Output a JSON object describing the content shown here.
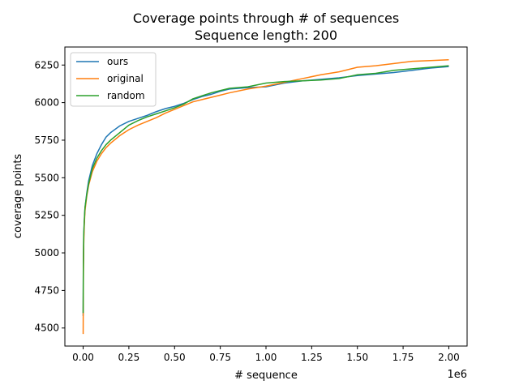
{
  "chart_data": {
    "type": "line",
    "title": "Coverage points through # of sequences",
    "subtitle": "Sequence length: 200",
    "xlabel": "# sequence",
    "ylabel": "coverage points",
    "x_offset_label": "1e6",
    "xlim": [
      -0.1,
      2.1
    ],
    "ylim": [
      4380,
      6370
    ],
    "x_ticks": [
      0.0,
      0.25,
      0.5,
      0.75,
      1.0,
      1.25,
      1.5,
      1.75,
      2.0
    ],
    "x_tick_labels": [
      "0.00",
      "0.25",
      "0.50",
      "0.75",
      "1.00",
      "1.25",
      "1.50",
      "1.75",
      "2.00"
    ],
    "y_ticks": [
      4500,
      4750,
      5000,
      5250,
      5500,
      5750,
      6000,
      6250
    ],
    "y_tick_labels": [
      "4500",
      "4750",
      "5000",
      "5250",
      "5500",
      "5750",
      "6000",
      "6250"
    ],
    "grid": false,
    "legend_position": "top-left",
    "series": [
      {
        "name": "ours",
        "color": "#1f77b4",
        "x": [
          0,
          0.001,
          0.003,
          0.006,
          0.01,
          0.02,
          0.03,
          0.05,
          0.075,
          0.1,
          0.125,
          0.15,
          0.2,
          0.25,
          0.3,
          0.35,
          0.4,
          0.45,
          0.5,
          0.55,
          0.6,
          0.65,
          0.7,
          0.75,
          0.8,
          0.9,
          1.0,
          1.1,
          1.2,
          1.3,
          1.4,
          1.5,
          1.6,
          1.7,
          1.8,
          1.9,
          2.0
        ],
        "values": [
          4580,
          4900,
          5100,
          5200,
          5300,
          5400,
          5480,
          5580,
          5660,
          5720,
          5770,
          5800,
          5845,
          5875,
          5895,
          5915,
          5940,
          5960,
          5975,
          5995,
          6020,
          6040,
          6055,
          6075,
          6090,
          6100,
          6105,
          6130,
          6145,
          6155,
          6165,
          6180,
          6190,
          6200,
          6215,
          6230,
          6240
        ]
      },
      {
        "name": "original",
        "color": "#ff7f0e",
        "x": [
          0,
          0.001,
          0.003,
          0.006,
          0.01,
          0.02,
          0.03,
          0.05,
          0.075,
          0.1,
          0.125,
          0.15,
          0.2,
          0.25,
          0.3,
          0.35,
          0.4,
          0.45,
          0.5,
          0.55,
          0.6,
          0.65,
          0.7,
          0.75,
          0.8,
          0.9,
          1.0,
          1.1,
          1.2,
          1.3,
          1.4,
          1.5,
          1.6,
          1.7,
          1.8,
          1.9,
          2.0
        ],
        "values": [
          4460,
          4800,
          5050,
          5180,
          5280,
          5380,
          5450,
          5540,
          5610,
          5660,
          5700,
          5730,
          5780,
          5820,
          5850,
          5875,
          5900,
          5930,
          5955,
          5980,
          6005,
          6020,
          6035,
          6050,
          6065,
          6090,
          6110,
          6135,
          6160,
          6185,
          6205,
          6235,
          6245,
          6260,
          6275,
          6280,
          6285
        ]
      },
      {
        "name": "random",
        "color": "#2ca02c",
        "x": [
          0,
          0.001,
          0.003,
          0.006,
          0.01,
          0.02,
          0.03,
          0.05,
          0.075,
          0.1,
          0.125,
          0.15,
          0.2,
          0.25,
          0.3,
          0.35,
          0.4,
          0.45,
          0.5,
          0.55,
          0.6,
          0.65,
          0.7,
          0.75,
          0.8,
          0.9,
          1.0,
          1.1,
          1.2,
          1.3,
          1.4,
          1.5,
          1.6,
          1.7,
          1.8,
          1.9,
          2.0
        ],
        "values": [
          4600,
          4920,
          5120,
          5210,
          5300,
          5390,
          5460,
          5560,
          5630,
          5680,
          5720,
          5750,
          5800,
          5850,
          5880,
          5905,
          5925,
          5945,
          5965,
          5990,
          6025,
          6045,
          6065,
          6080,
          6095,
          6105,
          6130,
          6140,
          6145,
          6150,
          6160,
          6185,
          6195,
          6215,
          6225,
          6235,
          6245
        ]
      }
    ]
  }
}
